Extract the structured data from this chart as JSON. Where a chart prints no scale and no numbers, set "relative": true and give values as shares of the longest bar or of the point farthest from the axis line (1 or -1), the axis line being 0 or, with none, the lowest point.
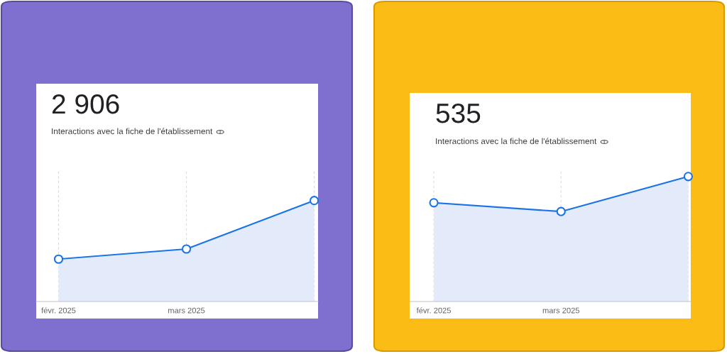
{
  "chart_data": [
    {
      "type": "area",
      "title": "2 906",
      "subtitle": "Interactions avec la fiche de l'établissement",
      "categories": [
        "févr. 2025",
        "mars 2025",
        null
      ],
      "relative": true,
      "series": [
        {
          "color": "#1a73e8",
          "values": [
            0.42,
            0.52,
            1
          ]
        }
      ],
      "grid": "x",
      "marker": "circle",
      "line_style": "solid",
      "legend": false
    },
    {
      "type": "area",
      "title": "535",
      "subtitle": "Interactions avec la fiche de l'établissement",
      "categories": [
        "févr. 2025",
        "mars 2025",
        null
      ],
      "relative": true,
      "series": [
        {
          "color": "#1a73e8",
          "values": [
            0.79,
            0.72,
            1
          ]
        }
      ],
      "grid": "x",
      "marker": "circle",
      "line_style": "solid",
      "legend": false
    }
  ]
}
